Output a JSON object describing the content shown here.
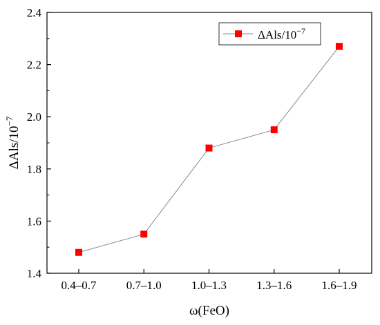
{
  "chart_data": {
    "type": "line",
    "categories": [
      "0.4–0.7",
      "0.7–1.0",
      "1.0–1.3",
      "1.3–1.6",
      "1.6–1.9"
    ],
    "series": [
      {
        "name": "ΔAls/10",
        "exponent": "−7",
        "values": [
          1.48,
          1.55,
          1.88,
          1.95,
          2.27
        ],
        "color": "#ff0000"
      }
    ],
    "xlabel": "ω(FeO)",
    "ylabel": "ΔAls/10",
    "ylabel_exponent": "−7",
    "ylim": [
      1.4,
      2.4
    ],
    "yticks": [
      "1.4",
      "1.6",
      "1.8",
      "2.0",
      "2.2",
      "2.4"
    ],
    "grid": false,
    "legend": "top-right",
    "line_color": "#888888",
    "marker": "square"
  }
}
